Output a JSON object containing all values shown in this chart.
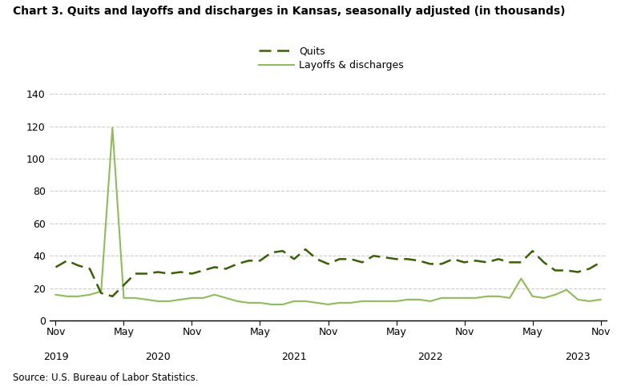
{
  "title": "Chart 3. Quits and layoffs and discharges in Kansas, seasonally adjusted (in thousands)",
  "source": "Source: U.S. Bureau of Labor Statistics.",
  "legend_quits": "Quits",
  "legend_layoffs": "Layoffs & discharges",
  "ylim": [
    0,
    140
  ],
  "yticks": [
    0,
    20,
    40,
    60,
    80,
    100,
    120,
    140
  ],
  "quits_color": "#3a5f0b",
  "layoffs_color": "#8fbc5a",
  "quits": [
    33,
    37,
    34,
    32,
    17,
    15,
    22,
    29,
    29,
    30,
    29,
    30,
    29,
    31,
    33,
    32,
    35,
    37,
    37,
    42,
    43,
    38,
    44,
    38,
    35,
    38,
    38,
    36,
    40,
    39,
    38,
    38,
    37,
    35,
    35,
    38,
    36,
    37,
    36,
    38,
    36,
    36,
    43,
    36,
    31,
    31,
    30,
    32,
    36
  ],
  "layoffs": [
    16,
    15,
    15,
    16,
    18,
    119,
    14,
    14,
    13,
    12,
    12,
    13,
    14,
    14,
    16,
    14,
    12,
    11,
    11,
    10,
    10,
    12,
    12,
    11,
    10,
    11,
    11,
    12,
    12,
    12,
    12,
    13,
    13,
    12,
    14,
    14,
    14,
    14,
    15,
    15,
    14,
    26,
    15,
    14,
    16,
    19,
    13,
    12,
    13
  ],
  "xtick_pos": [
    0,
    6,
    12,
    18,
    24,
    30,
    36,
    42,
    48
  ],
  "xtick_labels": [
    "Nov",
    "May",
    "Nov",
    "May",
    "Nov",
    "May",
    "Nov",
    "May",
    "Nov"
  ],
  "year_pos": [
    0,
    9,
    21,
    33,
    46
  ],
  "year_labels": [
    "2019",
    "2020",
    "2021",
    "2022",
    "2023"
  ]
}
